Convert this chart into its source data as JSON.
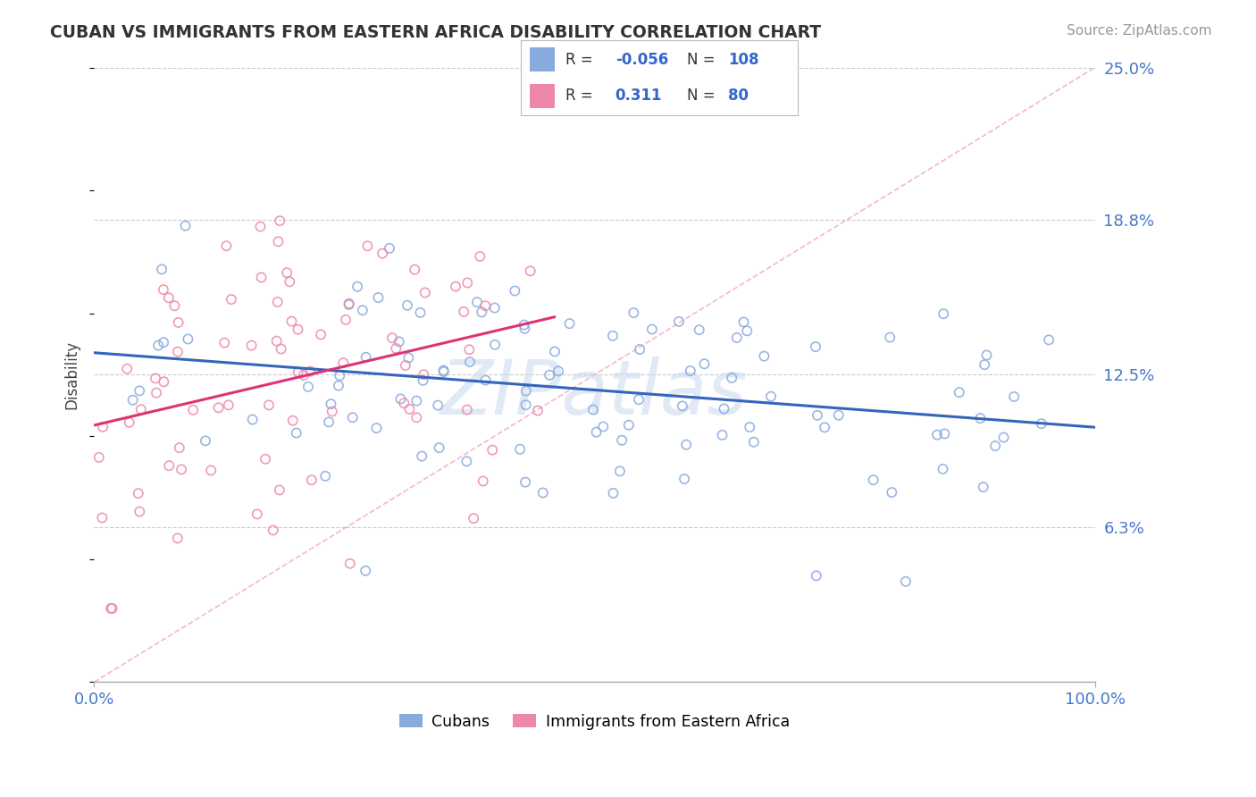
{
  "title": "CUBAN VS IMMIGRANTS FROM EASTERN AFRICA DISABILITY CORRELATION CHART",
  "source": "Source: ZipAtlas.com",
  "ylabel": "Disability",
  "xlim": [
    0.0,
    1.0
  ],
  "ylim": [
    0.0,
    0.25
  ],
  "ytick_vals": [
    0.0,
    0.063,
    0.125,
    0.188,
    0.25
  ],
  "ytick_labels": [
    "",
    "6.3%",
    "12.5%",
    "18.8%",
    "25.0%"
  ],
  "xtick_labels": [
    "0.0%",
    "100.0%"
  ],
  "background_color": "#ffffff",
  "grid_color": "#cccccc",
  "blue_color": "#88aadd",
  "pink_color": "#ee88aa",
  "blue_r": -0.056,
  "blue_n": 108,
  "pink_r": 0.311,
  "pink_n": 80,
  "watermark": "ZIPatlas"
}
